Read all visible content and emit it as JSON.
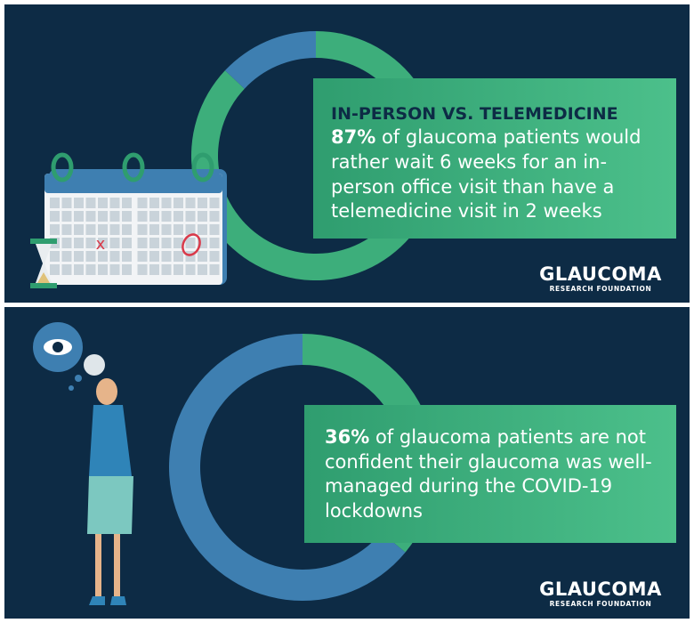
{
  "chart_data": [
    {
      "type": "donut",
      "title": "IN-PERSON VS. TELEMEDICINE",
      "highlight": "87%",
      "text": "of glaucoma patients would rather wait 6 weeks for an in-person office visit than have a telemedicine visit in 2 weeks",
      "values": [
        87,
        13
      ],
      "colors": [
        "#3dae7b",
        "#3e7fb1"
      ]
    },
    {
      "type": "donut",
      "highlight": "36%",
      "text": "of glaucoma patients are not confident their glaucoma was well-managed during the COVID-19  lockdowns",
      "values": [
        36,
        64
      ],
      "colors": [
        "#3dae7b",
        "#3e7fb1"
      ]
    }
  ],
  "logo": {
    "name": "GLAUCOMA",
    "tagline": "RESEARCH FOUNDATION"
  }
}
